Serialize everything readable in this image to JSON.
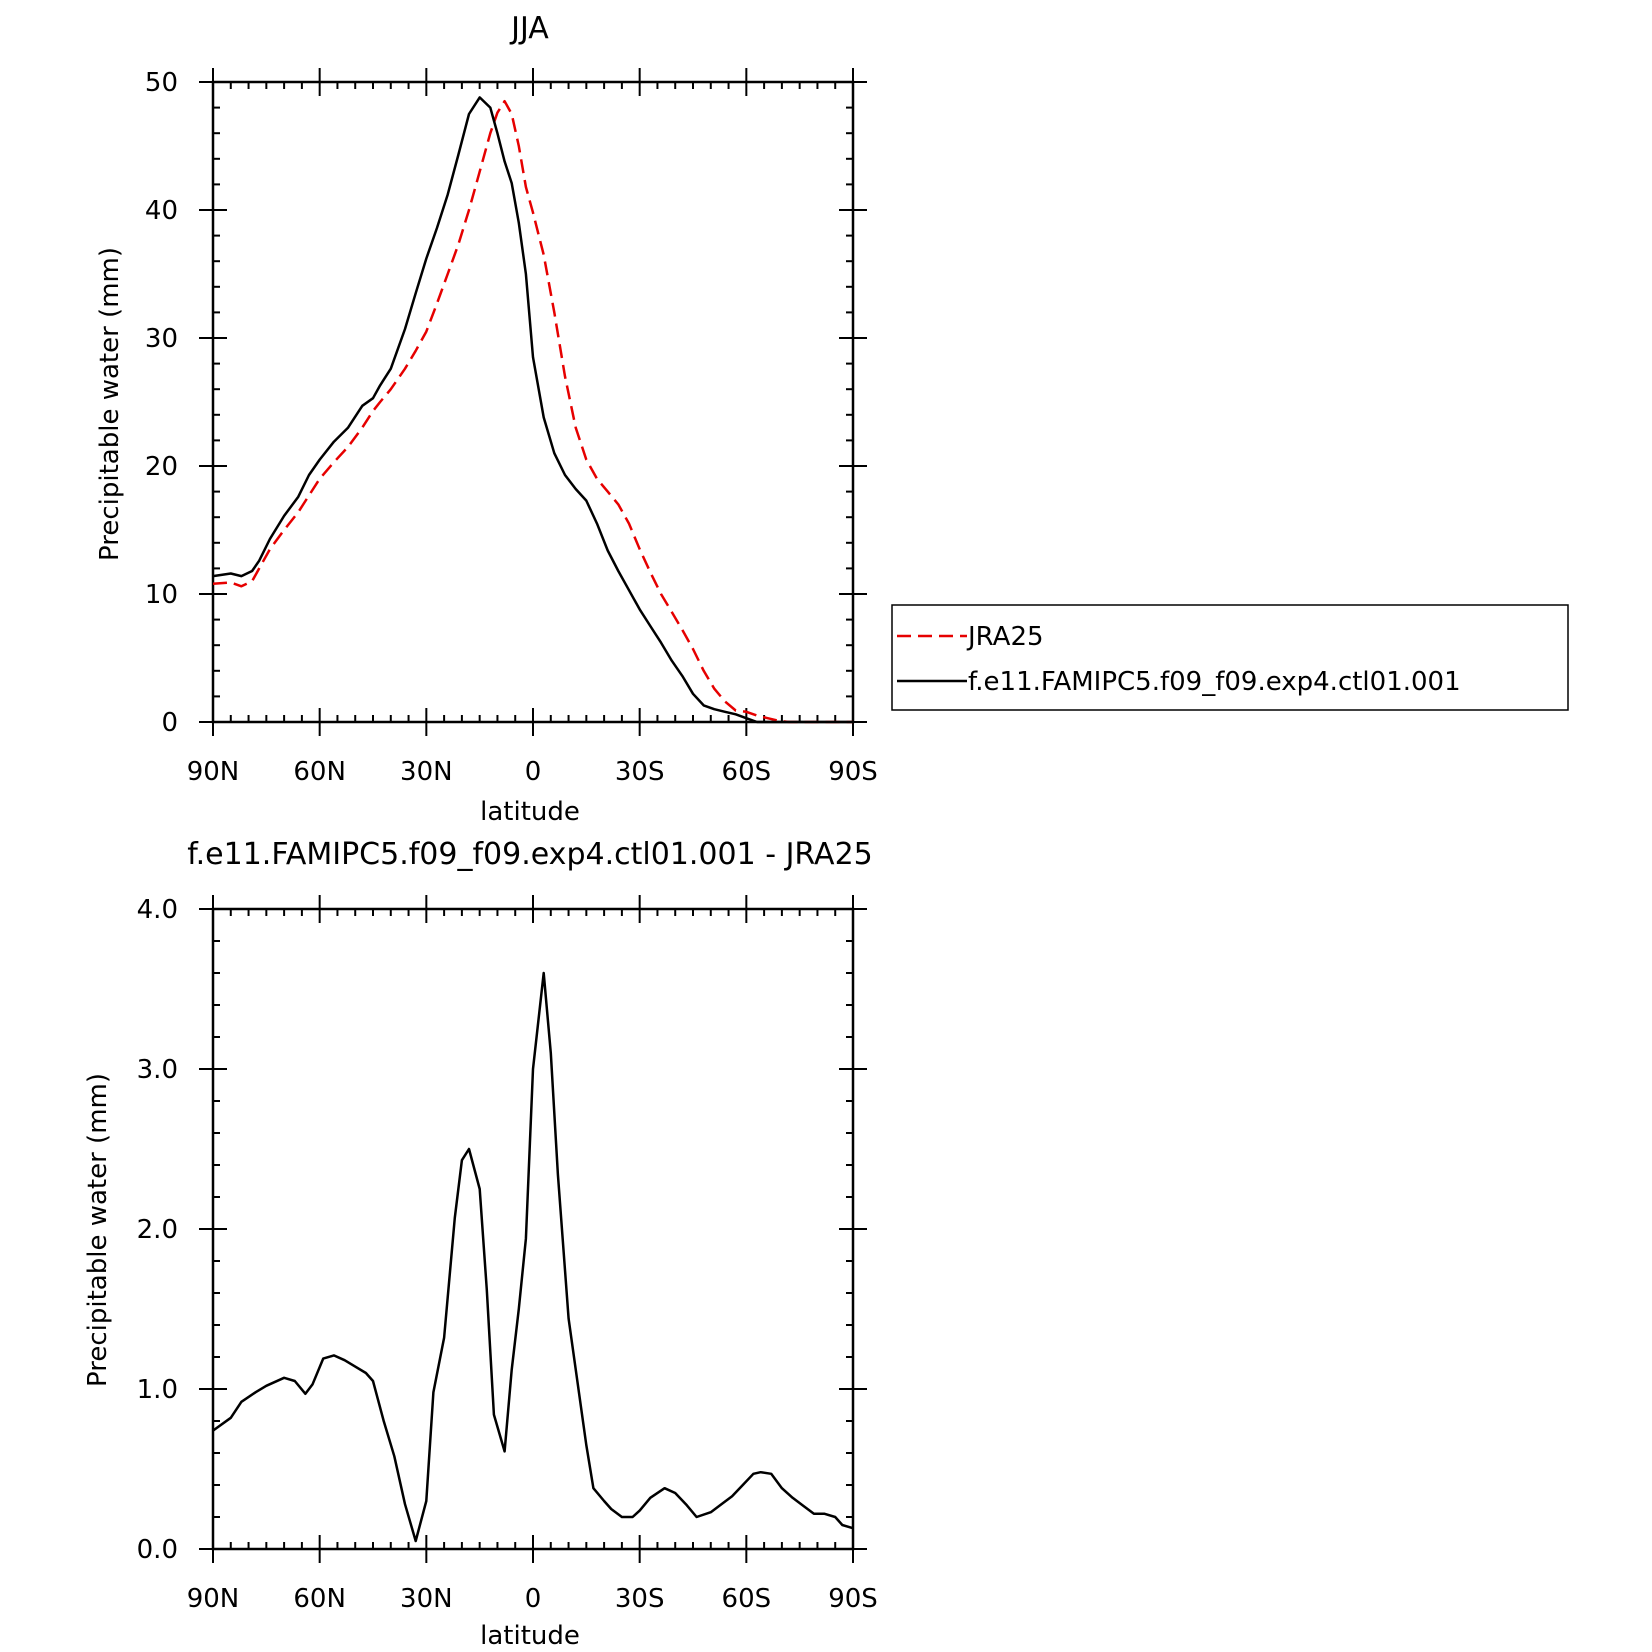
{
  "figure": {
    "colors": {
      "jra25": "#e60000",
      "model": "#000000",
      "axes": "#000000",
      "background": "#ffffff"
    }
  },
  "chart_data": [
    {
      "type": "line",
      "title": "JJA",
      "xlabel": "latitude",
      "ylabel": "Precipitable water (mm)",
      "xlim": [
        90,
        -90
      ],
      "ylim": [
        0,
        50
      ],
      "x_ticks": [
        90,
        60,
        30,
        0,
        -30,
        -60,
        -90
      ],
      "x_tick_labels": [
        "90N",
        "60N",
        "30N",
        "0",
        "30S",
        "60S",
        "90S"
      ],
      "y_ticks": [
        0,
        10,
        20,
        30,
        40,
        50
      ],
      "y_tick_labels": [
        "0",
        "10",
        "20",
        "30",
        "40",
        "50"
      ],
      "legend_position": "right",
      "series": [
        {
          "name": "JRA25",
          "style": "dashed",
          "color": "#e60000",
          "x": [
            90,
            85,
            82,
            79,
            77,
            74,
            70,
            66,
            63,
            60,
            56,
            52,
            48,
            45,
            43,
            40,
            36,
            33,
            30,
            27,
            24,
            21,
            18,
            15,
            12,
            10,
            8,
            6,
            4,
            2,
            0,
            -3,
            -6,
            -9,
            -12,
            -15,
            -18,
            -21,
            -24,
            -27,
            -30,
            -33,
            -36,
            -39,
            -42,
            -45,
            -48,
            -51,
            -54,
            -57,
            -60,
            -63,
            -66,
            -69,
            -72,
            -75,
            -78,
            -81,
            -84,
            -87,
            -90
          ],
          "values": [
            10.8,
            10.9,
            10.6,
            11.0,
            12.0,
            13.5,
            15.0,
            16.4,
            17.7,
            19.0,
            20.3,
            21.5,
            23.0,
            24.3,
            25.0,
            26.0,
            27.6,
            29.0,
            30.5,
            32.7,
            35.0,
            37.3,
            40.0,
            43.0,
            46.0,
            47.6,
            48.5,
            47.5,
            45.0,
            41.8,
            39.8,
            36.5,
            32.0,
            27.0,
            23.0,
            20.5,
            19.0,
            18.0,
            17.0,
            15.5,
            13.5,
            11.7,
            10.0,
            8.6,
            7.2,
            5.7,
            4.0,
            2.6,
            1.6,
            0.9,
            0.8,
            0.5,
            0.3,
            0.1,
            0.0,
            0.0,
            0.0,
            0.0,
            0.0,
            0.0,
            0.0
          ],
          "values_note": ""
        },
        {
          "name": "f.e11.FAMIPC5.f09_f09.exp4.ctl01.001",
          "style": "solid",
          "color": "#000000",
          "x": [
            90,
            85,
            82,
            79,
            77,
            74,
            70,
            66,
            63,
            60,
            56,
            52,
            48,
            45,
            43,
            40,
            36,
            33,
            30,
            27,
            24,
            21,
            18,
            15,
            12,
            10,
            8,
            6,
            4,
            2,
            0,
            -3,
            -6,
            -9,
            -12,
            -15,
            -18,
            -21,
            -24,
            -27,
            -30,
            -33,
            -36,
            -39,
            -42,
            -45,
            -48,
            -51,
            -54,
            -57,
            -60,
            -63,
            -66,
            -69,
            -72,
            -75,
            -78,
            -81,
            -84,
            -87,
            -90
          ],
          "values": [
            11.4,
            11.6,
            11.4,
            11.8,
            12.6,
            14.3,
            16.1,
            17.6,
            19.3,
            20.5,
            21.9,
            23.0,
            24.7,
            25.3,
            26.3,
            27.6,
            30.7,
            33.5,
            36.2,
            38.6,
            41.2,
            44.3,
            47.5,
            48.8,
            48.0,
            46.0,
            43.8,
            42.1,
            39.0,
            35.0,
            28.5,
            23.8,
            21.0,
            19.3,
            18.2,
            17.3,
            15.5,
            13.4,
            11.8,
            10.3,
            8.8,
            7.5,
            6.2,
            4.8,
            3.6,
            2.2,
            1.3,
            1.0,
            0.8,
            0.6,
            0.3,
            0.0,
            0.0,
            0.0,
            0.0,
            0.0,
            0.0,
            0.0,
            0.0,
            0.0,
            0.0
          ],
          "values_note": ""
        }
      ]
    },
    {
      "type": "line",
      "title": "f.e11.FAMIPC5.f09_f09.exp4.ctl01.001 - JRA25",
      "xlabel": "latitude",
      "ylabel": "Precipitable water (mm)",
      "xlim": [
        90,
        -90
      ],
      "ylim": [
        0,
        4
      ],
      "x_ticks": [
        90,
        60,
        30,
        0,
        -30,
        -60,
        -90
      ],
      "x_tick_labels": [
        "90N",
        "60N",
        "30N",
        "0",
        "30S",
        "60S",
        "90S"
      ],
      "y_ticks": [
        0,
        1,
        2,
        3,
        4
      ],
      "y_tick_labels": [
        "0.0",
        "1.0",
        "2.0",
        "3.0",
        "4.0"
      ],
      "series": [
        {
          "style": "solid",
          "color": "#000000",
          "x": [
            90,
            85,
            82,
            78,
            75,
            70,
            67,
            64,
            62,
            59,
            56,
            53,
            50,
            47,
            45,
            42,
            39,
            36,
            33,
            30,
            28,
            25,
            22,
            20,
            18,
            15,
            13,
            11,
            8,
            6,
            4,
            2,
            0,
            -3,
            -5,
            -7,
            -10,
            -15,
            -17,
            -20,
            -22,
            -25,
            -28,
            -30,
            -33,
            -37,
            -40,
            -43,
            -46,
            -50,
            -53,
            -56,
            -59,
            -62,
            -64,
            -67,
            -70,
            -73,
            -76,
            -79,
            -82,
            -85,
            -87,
            -90
          ],
          "values": [
            0.74,
            0.82,
            0.92,
            0.98,
            1.02,
            1.07,
            1.05,
            0.97,
            1.03,
            1.19,
            1.21,
            1.18,
            1.14,
            1.1,
            1.05,
            0.8,
            0.58,
            0.28,
            0.05,
            0.3,
            0.98,
            1.32,
            2.07,
            2.43,
            2.5,
            2.25,
            1.62,
            0.84,
            0.61,
            1.12,
            1.5,
            1.94,
            3.0,
            3.6,
            3.1,
            2.34,
            1.44,
            0.65,
            0.38,
            0.3,
            0.25,
            0.2,
            0.2,
            0.24,
            0.32,
            0.38,
            0.35,
            0.28,
            0.2,
            0.23,
            0.28,
            0.33,
            0.4,
            0.47,
            0.48,
            0.47,
            0.38,
            0.32,
            0.27,
            0.22,
            0.22,
            0.2,
            0.15,
            0.13
          ]
        }
      ]
    }
  ]
}
